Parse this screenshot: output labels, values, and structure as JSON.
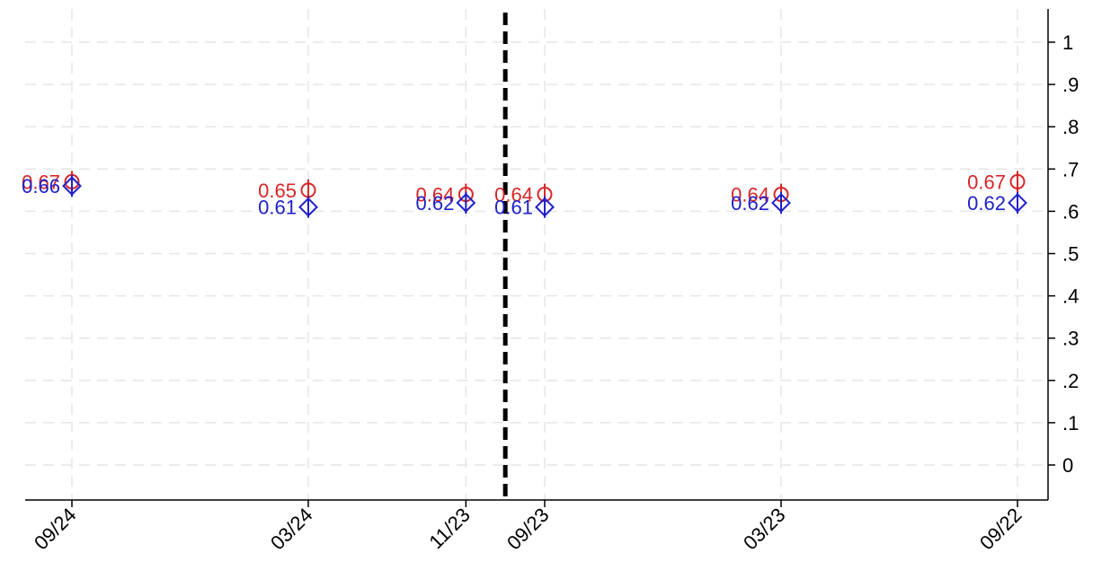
{
  "chart_data": {
    "type": "scatter",
    "x_categories": [
      "09/24",
      "03/24",
      "11/23",
      "09/23",
      "03/23",
      "09/22"
    ],
    "x_positions": [
      0,
      6,
      10,
      12,
      18,
      24
    ],
    "ylim": [
      0,
      1
    ],
    "yticks": [
      {
        "value": 1.0,
        "label": "1"
      },
      {
        "value": 0.9,
        "label": ".9"
      },
      {
        "value": 0.8,
        "label": ".8"
      },
      {
        "value": 0.7,
        "label": ".7"
      },
      {
        "value": 0.6,
        "label": ".6"
      },
      {
        "value": 0.5,
        "label": ".5"
      },
      {
        "value": 0.4,
        "label": ".4"
      },
      {
        "value": 0.3,
        "label": ".3"
      },
      {
        "value": 0.2,
        "label": ".2"
      },
      {
        "value": 0.1,
        "label": ".1"
      },
      {
        "value": 0.0,
        "label": "0"
      }
    ],
    "y_axis_position": "right",
    "grid": true,
    "vline_between": [
      "11/23",
      "09/23"
    ],
    "series": [
      {
        "marker": "circle-with-bar",
        "color": "#d62728",
        "values": [
          0.67,
          0.65,
          0.64,
          0.64,
          0.64,
          0.67
        ],
        "labels": [
          "0.67",
          "0.65",
          "0.64",
          "0.64",
          "0.64",
          "0.67"
        ]
      },
      {
        "marker": "diamond-with-bar",
        "color": "#1f1fcc",
        "values": [
          0.66,
          0.61,
          0.62,
          0.61,
          0.62,
          0.62
        ],
        "labels": [
          "0.66",
          "0.61",
          "0.62",
          "0.61",
          "0.62",
          "0.62"
        ]
      }
    ]
  }
}
